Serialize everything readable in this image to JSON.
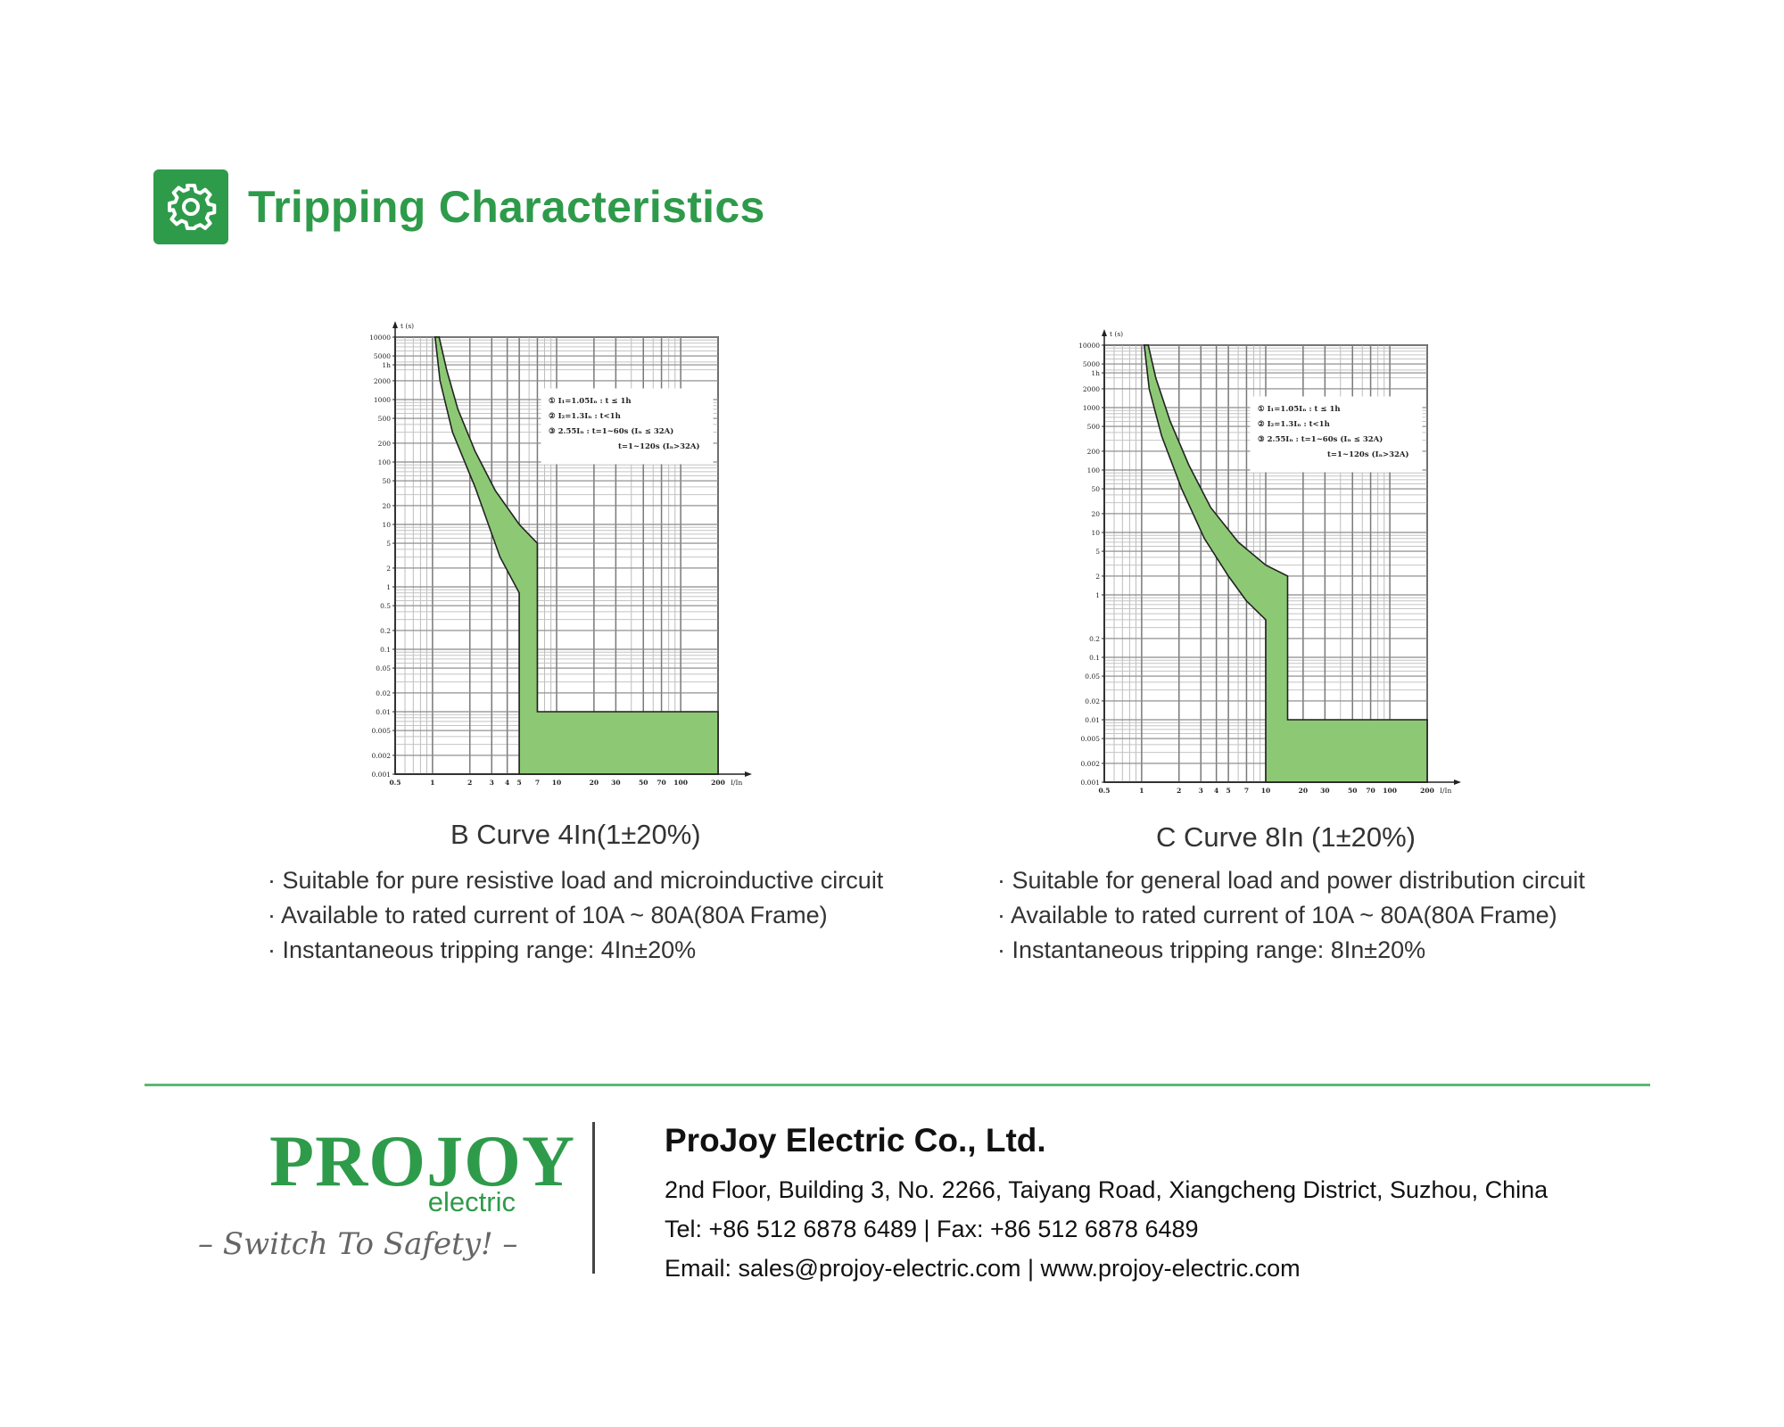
{
  "header": {
    "title": "Tripping Characteristics",
    "icon": "gear-icon",
    "accent": "#2e9b4a"
  },
  "chart_data": [
    {
      "type": "area",
      "title": "B Curve  4In(1±20%)",
      "ylabel": "t (s)",
      "xlabel": "I/In",
      "x_scale": "log",
      "y_scale": "log",
      "xlim": [
        0.5,
        200
      ],
      "ylim": [
        0.001,
        10000
      ],
      "x_ticks": [
        "0.5",
        "1",
        "2",
        "3",
        "4",
        "5",
        "7",
        "10",
        "20",
        "30",
        "50",
        "70",
        "100",
        "200"
      ],
      "y_ticks": [
        "10000",
        "5000",
        "1h",
        "2000",
        "1000",
        "500",
        "200",
        "100",
        "50",
        "20",
        "10",
        "5",
        "2",
        "1",
        "0.5",
        "0.2",
        "0.1",
        "0.05",
        "0.02",
        "0.01",
        "0.005",
        "0.002",
        "0.001"
      ],
      "upper_curve": [
        [
          1.13,
          10000
        ],
        [
          1.3,
          3000
        ],
        [
          1.6,
          700
        ],
        [
          2.2,
          150
        ],
        [
          3.2,
          35
        ],
        [
          5,
          10
        ],
        [
          7,
          5
        ],
        [
          7,
          0.01
        ],
        [
          200,
          0.01
        ]
      ],
      "lower_curve": [
        [
          1.05,
          10000
        ],
        [
          1.15,
          2000
        ],
        [
          1.45,
          300
        ],
        [
          2.2,
          40
        ],
        [
          3.5,
          3
        ],
        [
          5,
          0.8
        ],
        [
          5,
          0.001
        ],
        [
          200,
          0.001
        ]
      ],
      "legend_lines": [
        "① I₁=1.05Iₙ : t ≤ 1h",
        "② I₂=1.3Iₙ : t<1h",
        "③ 2.55Iₙ : t=1~60s (Iₙ ≤ 32A)",
        "t=1~120s (Iₙ>32A)"
      ],
      "legend_position": "top-right",
      "fill_color": "#8dc975"
    },
    {
      "type": "area",
      "title": "C Curve   8In (1±20%)",
      "ylabel": "t (s)",
      "xlabel": "I/In",
      "x_scale": "log",
      "y_scale": "log",
      "xlim": [
        0.5,
        200
      ],
      "ylim": [
        0.001,
        10000
      ],
      "x_ticks": [
        "0.5",
        "1",
        "2",
        "3",
        "4",
        "5",
        "7",
        "10",
        "20",
        "30",
        "50",
        "70",
        "100",
        "200"
      ],
      "y_ticks": [
        "10000",
        "5000",
        "1h",
        "2000",
        "1000",
        "500",
        "200",
        "100",
        "50",
        "20",
        "10",
        "5",
        "2",
        "1",
        "0.2",
        "0.1",
        "0.05",
        "0.02",
        "0.01",
        "0.005",
        "0.002",
        "0.001"
      ],
      "upper_curve": [
        [
          1.13,
          10000
        ],
        [
          1.3,
          3000
        ],
        [
          1.7,
          600
        ],
        [
          2.4,
          120
        ],
        [
          3.6,
          25
        ],
        [
          6,
          7
        ],
        [
          10,
          3
        ],
        [
          15,
          2
        ],
        [
          15,
          0.01
        ],
        [
          200,
          0.01
        ]
      ],
      "lower_curve": [
        [
          1.05,
          10000
        ],
        [
          1.15,
          2000
        ],
        [
          1.45,
          350
        ],
        [
          2.1,
          50
        ],
        [
          3.2,
          8
        ],
        [
          5,
          2
        ],
        [
          7,
          0.8
        ],
        [
          10,
          0.4
        ],
        [
          10,
          0.001
        ],
        [
          200,
          0.001
        ]
      ],
      "legend_lines": [
        "① I₁=1.05Iₙ : t ≤ 1h",
        "② I₂=1.3Iₙ : t<1h",
        "③ 2.55Iₙ : t=1~60s (Iₙ ≤ 32A)",
        "t=1~120s (Iₙ>32A)"
      ],
      "legend_position": "top-right",
      "fill_color": "#8dc975"
    }
  ],
  "b_curve": {
    "caption": "B Curve  4In(1±20%)",
    "bullets": [
      "Suitable for pure resistive load and microinductive circuit",
      "Available to rated current of 10A ~ 80A(80A Frame)",
      "Instantaneous tripping range: 4In±20%"
    ]
  },
  "c_curve": {
    "caption": "C Curve   8In (1±20%)",
    "bullets": [
      "Suitable for general load and power distribution circuit",
      "Available to rated current  of 10A ~ 80A(80A Frame)",
      "Instantaneous tripping range: 8In±20%"
    ]
  },
  "footer": {
    "logo": "PROJOY",
    "logo_sub": "electric",
    "slogan": "– Switch To Safety! –",
    "company": "ProJoy Electric Co., Ltd.",
    "address": "2nd Floor, Building 3, No. 2266, Taiyang Road, Xiangcheng District, Suzhou, China",
    "phone_line": "Tel: +86 512 6878 6489    |   Fax: +86 512 6878 6489",
    "web_line": "Email: sales@projoy-electric.com   |   www.projoy-electric.com"
  }
}
